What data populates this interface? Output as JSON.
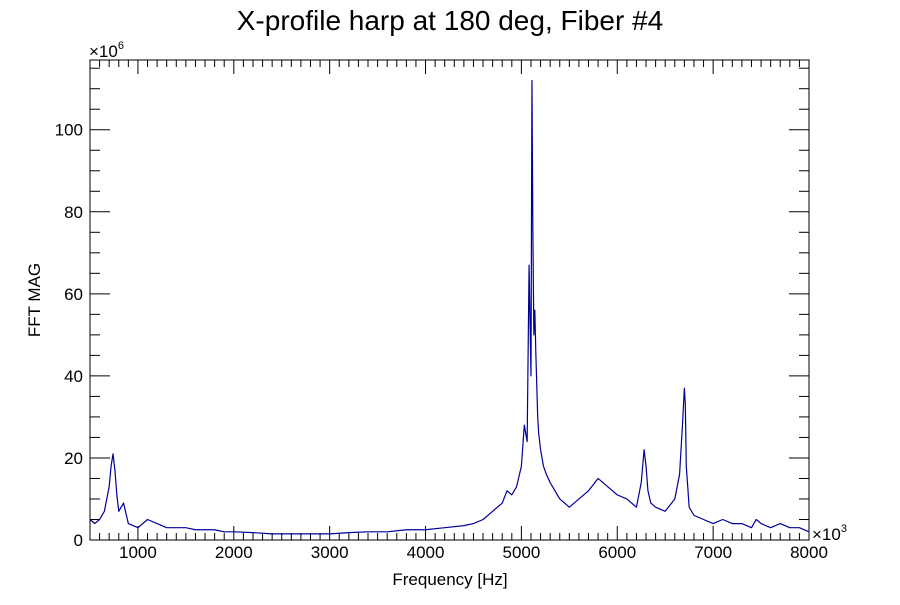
{
  "chart_data": {
    "type": "line",
    "title": "X-profile harp at 180 deg, Fiber #4",
    "xlabel": "Frequency [Hz]",
    "ylabel": "FFT MAG",
    "x_multiplier_label": "×10",
    "x_multiplier_exp": "3",
    "y_multiplier_label": "×10",
    "y_multiplier_exp": "6",
    "xlim": [
      500,
      8000
    ],
    "ylim": [
      0,
      117
    ],
    "x_ticks": [
      1000,
      2000,
      3000,
      4000,
      5000,
      6000,
      7000,
      8000
    ],
    "x_tick_labels": [
      "1000",
      "2000",
      "3000",
      "4000",
      "5000",
      "6000",
      "7000",
      "8000"
    ],
    "y_ticks": [
      0,
      20,
      40,
      60,
      80,
      100
    ],
    "y_tick_labels": [
      "0",
      "20",
      "40",
      "60",
      "80",
      "100"
    ],
    "grid": false,
    "line_color": "#000099",
    "series": [
      {
        "x": [
          500,
          550,
          600,
          650,
          700,
          720,
          740,
          760,
          780,
          800,
          850,
          900,
          1000,
          1100,
          1200,
          1300,
          1400,
          1500,
          1600,
          1700,
          1800,
          1900,
          2000,
          2200,
          2400,
          2600,
          2800,
          3000,
          3200,
          3400,
          3600,
          3800,
          4000,
          4200,
          4400,
          4500,
          4600,
          4700,
          4800,
          4850,
          4900,
          4950,
          5000,
          5030,
          5060,
          5080,
          5100,
          5110,
          5120,
          5130,
          5140,
          5150,
          5160,
          5170,
          5180,
          5200,
          5230,
          5260,
          5300,
          5350,
          5400,
          5450,
          5500,
          5600,
          5700,
          5800,
          5850,
          5900,
          5950,
          6000,
          6100,
          6200,
          6250,
          6280,
          6300,
          6320,
          6350,
          6400,
          6500,
          6600,
          6650,
          6680,
          6700,
          6710,
          6720,
          6750,
          6800,
          6900,
          7000,
          7100,
          7200,
          7300,
          7400,
          7450,
          7500,
          7600,
          7700,
          7800,
          7900,
          8000
        ],
        "values": [
          5,
          4,
          5,
          7,
          13,
          18,
          21,
          17,
          11,
          7,
          9,
          4,
          3,
          5,
          4,
          3,
          3,
          3,
          2.5,
          2.5,
          2.5,
          2,
          2,
          1.8,
          1.5,
          1.5,
          1.5,
          1.5,
          1.8,
          2,
          2,
          2.5,
          2.5,
          3,
          3.5,
          4,
          5,
          7,
          9,
          12,
          11,
          13,
          18,
          28,
          24,
          67,
          40,
          112,
          74,
          50,
          56,
          46,
          38,
          30,
          26,
          22,
          18,
          16,
          14,
          12,
          10,
          9,
          8,
          10,
          12,
          15,
          14,
          13,
          12,
          11,
          10,
          8,
          14,
          22,
          18,
          12,
          9,
          8,
          7,
          10,
          16,
          28,
          37,
          33,
          18,
          8,
          6,
          5,
          4,
          5,
          4,
          4,
          3,
          5,
          4,
          3,
          4,
          3,
          3,
          2
        ]
      }
    ]
  }
}
